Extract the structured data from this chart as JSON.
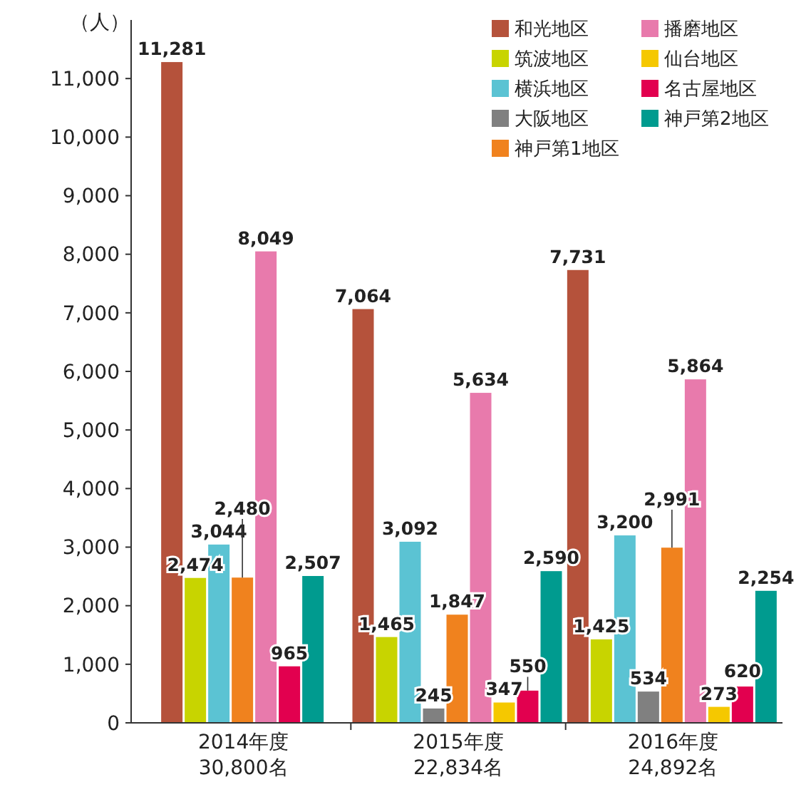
{
  "chart_data": {
    "type": "bar",
    "ylabel": "（人）",
    "categories": [
      "2014年度\n30,800名",
      "2015年度\n22,834名",
      "2016年度\n24,892名"
    ],
    "series": [
      {
        "name": "和光地区",
        "color": "#b5523b",
        "values": [
          11281,
          7064,
          7731
        ],
        "value_labels": [
          "11,281",
          "7,064",
          "7,731"
        ]
      },
      {
        "name": "筑波地区",
        "color": "#c8d400",
        "values": [
          2474,
          1465,
          1425
        ],
        "value_labels": [
          "2,474",
          "1,465",
          "1,425"
        ]
      },
      {
        "name": "横浜地区",
        "color": "#5bc3d3",
        "values": [
          3044,
          3092,
          3200
        ],
        "value_labels": [
          "3,044",
          "3,092",
          "3,200"
        ]
      },
      {
        "name": "大阪地区",
        "color": "#808080",
        "values": [
          null,
          245,
          534
        ],
        "value_labels": [
          null,
          "245",
          "534"
        ]
      },
      {
        "name": "神戸第1地区",
        "color": "#f0821e",
        "values": [
          2480,
          1847,
          2991
        ],
        "value_labels": [
          "2,480",
          "1,847",
          "2,991"
        ]
      },
      {
        "name": "播磨地区",
        "color": "#e87aac",
        "values": [
          8049,
          5634,
          5864
        ],
        "value_labels": [
          "8,049",
          "5,634",
          "5,864"
        ]
      },
      {
        "name": "仙台地区",
        "color": "#f5c800",
        "values": [
          null,
          347,
          273
        ],
        "value_labels": [
          null,
          "347",
          "273"
        ]
      },
      {
        "name": "名古屋地区",
        "color": "#e2004f",
        "values": [
          965,
          550,
          620
        ],
        "value_labels": [
          "965",
          "550",
          "620"
        ]
      },
      {
        "name": "神戸第2地区",
        "color": "#009b8f",
        "values": [
          2507,
          2590,
          2254
        ],
        "value_labels": [
          "2,507",
          "2,590",
          "2,254"
        ]
      }
    ],
    "ylim": [
      0,
      12000
    ],
    "yticks": [
      {
        "value": 0,
        "label": "0"
      },
      {
        "value": 1000,
        "label": "1,000"
      },
      {
        "value": 2000,
        "label": "2,000"
      },
      {
        "value": 3000,
        "label": "3,000"
      },
      {
        "value": 4000,
        "label": "4,000"
      },
      {
        "value": 5000,
        "label": "5,000"
      },
      {
        "value": 6000,
        "label": "6,000"
      },
      {
        "value": 7000,
        "label": "7,000"
      },
      {
        "value": 8000,
        "label": "8,000"
      },
      {
        "value": 9000,
        "label": "9,000"
      },
      {
        "value": 10000,
        "label": "10,000"
      },
      {
        "value": 11000,
        "label": "11,000"
      }
    ],
    "grid": false,
    "legend": "top right"
  }
}
